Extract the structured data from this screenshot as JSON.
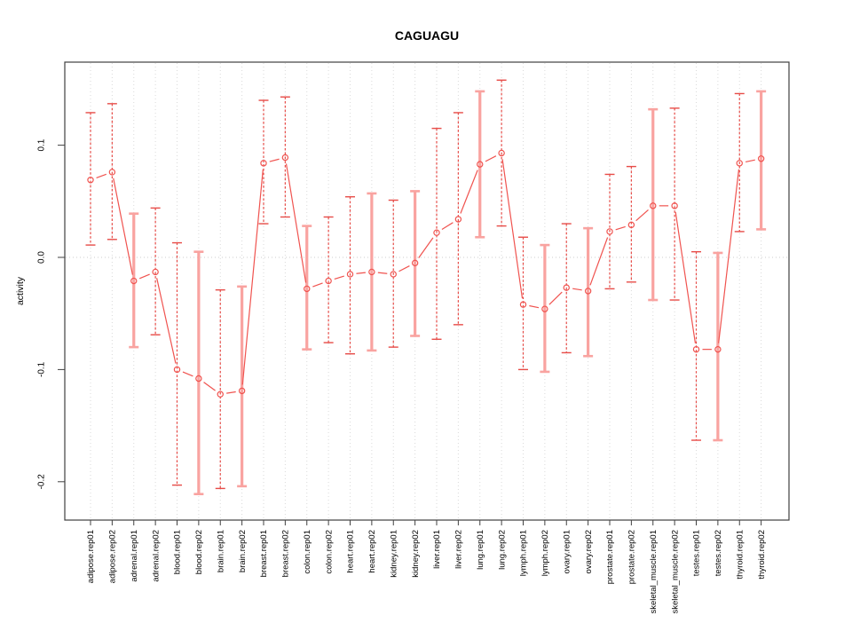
{
  "chart_data": {
    "type": "line",
    "subtype": "points-with-error-bars",
    "title": "CAGUAGU",
    "xlabel": "",
    "ylabel": "activity",
    "ylim": [
      -0.234,
      0.174
    ],
    "yticks": [
      0.1,
      0.0,
      -0.1,
      -0.2
    ],
    "ytick_labels": [
      "0.1",
      "0.0",
      "-0.1",
      "-0.2"
    ],
    "grid": "dotted vertical gridline at every category; dotted horizontal reference line at y=0",
    "legend": "none",
    "point_marker": "open-circle",
    "categories": [
      "adipose.rep01",
      "adipose.rep02",
      "adrenal.rep01",
      "adrenal.rep02",
      "blood.rep01",
      "blood.rep02",
      "brain.rep01",
      "brain.rep02",
      "breast.rep01",
      "breast.rep02",
      "colon.rep01",
      "colon.rep02",
      "heart.rep01",
      "heart.rep02",
      "kidney.rep01",
      "kidney.rep02",
      "liver.rep01",
      "liver.rep02",
      "lung.rep01",
      "lung.rep02",
      "lymph.rep01",
      "lymph.rep02",
      "ovary.rep01",
      "ovary.rep02",
      "prostate.rep01",
      "prostate.rep02",
      "skeletal_muscle.rep01",
      "skeletal_muscle.rep02",
      "testes.rep01",
      "testes.rep02",
      "thyroid.rep01",
      "thyroid.rep02"
    ],
    "series": [
      {
        "name": "activity",
        "values": [
          0.069,
          0.076,
          -0.021,
          -0.013,
          -0.1,
          -0.108,
          -0.122,
          -0.119,
          0.084,
          0.089,
          -0.028,
          -0.021,
          -0.015,
          -0.013,
          -0.015,
          -0.005,
          0.022,
          0.034,
          0.083,
          0.093,
          -0.042,
          -0.046,
          -0.027,
          -0.03,
          0.023,
          0.029,
          0.046,
          0.046,
          -0.082,
          -0.082,
          0.084,
          0.088
        ],
        "error_high": [
          0.129,
          0.137,
          0.039,
          0.044,
          0.013,
          0.005,
          -0.029,
          -0.026,
          0.14,
          0.143,
          0.028,
          0.036,
          0.054,
          0.057,
          0.051,
          0.059,
          0.115,
          0.129,
          0.148,
          0.158,
          0.018,
          0.011,
          0.03,
          0.026,
          0.074,
          0.081,
          0.132,
          0.133,
          0.005,
          0.004,
          0.146,
          0.148
        ],
        "error_low": [
          0.011,
          0.016,
          -0.08,
          -0.069,
          -0.203,
          -0.211,
          -0.206,
          -0.204,
          0.03,
          0.036,
          -0.082,
          -0.076,
          -0.086,
          -0.083,
          -0.08,
          -0.07,
          -0.073,
          -0.06,
          0.018,
          0.028,
          -0.1,
          -0.102,
          -0.085,
          -0.088,
          -0.028,
          -0.022,
          -0.038,
          -0.038,
          -0.163,
          -0.163,
          0.023,
          0.025
        ],
        "bar_styles": [
          "dashed",
          "dashed",
          "light",
          "dashed",
          "dashed",
          "light",
          "dashed",
          "light",
          "dashed",
          "dashed",
          "light",
          "dashed",
          "dashed",
          "light",
          "dashed",
          "light",
          "dashed",
          "dashed",
          "light",
          "dashed",
          "dashed",
          "light",
          "dashed",
          "light",
          "dashed",
          "dashed",
          "light",
          "dashed",
          "dashed",
          "light",
          "dashed",
          "light"
        ]
      }
    ],
    "colors": {
      "series": "#F0534F",
      "errorbar_dashed": "#E74C48",
      "errorbar_light": "#F9A3A0",
      "gridline": "#DADADA",
      "zero_line": "#CCCCCC",
      "frame": "#404040"
    }
  }
}
